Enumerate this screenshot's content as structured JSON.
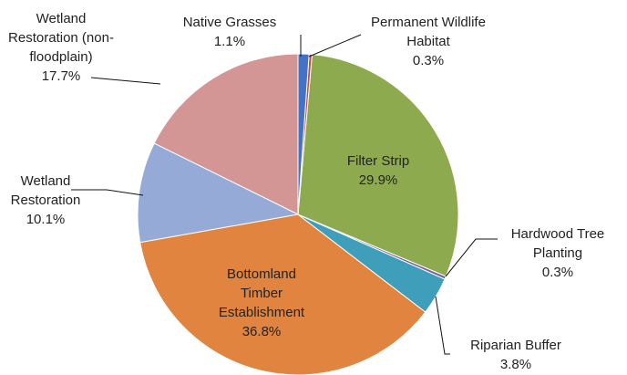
{
  "chart_data": {
    "type": "pie",
    "categories": [
      "Native Grasses",
      "Permanent Wildlife Habitat",
      "Filter Strip",
      "Hardwood Tree Planting",
      "Riparian Buffer",
      "Bottomland Timber Establishment",
      "Wetland Restoration",
      "Wetland Restoration (non-floodplain)"
    ],
    "values": [
      1.1,
      0.3,
      29.9,
      0.3,
      3.8,
      36.8,
      10.1,
      17.7
    ],
    "value_labels": [
      "1.1%",
      "0.3%",
      "29.9%",
      "0.3%",
      "3.8%",
      "36.8%",
      "10.1%",
      "17.7%"
    ],
    "colors": [
      "#4472c4",
      "#c0504d",
      "#8eaa4f",
      "#7b5fa0",
      "#3f9fbb",
      "#e0843f",
      "#95aad6",
      "#d49595"
    ]
  }
}
